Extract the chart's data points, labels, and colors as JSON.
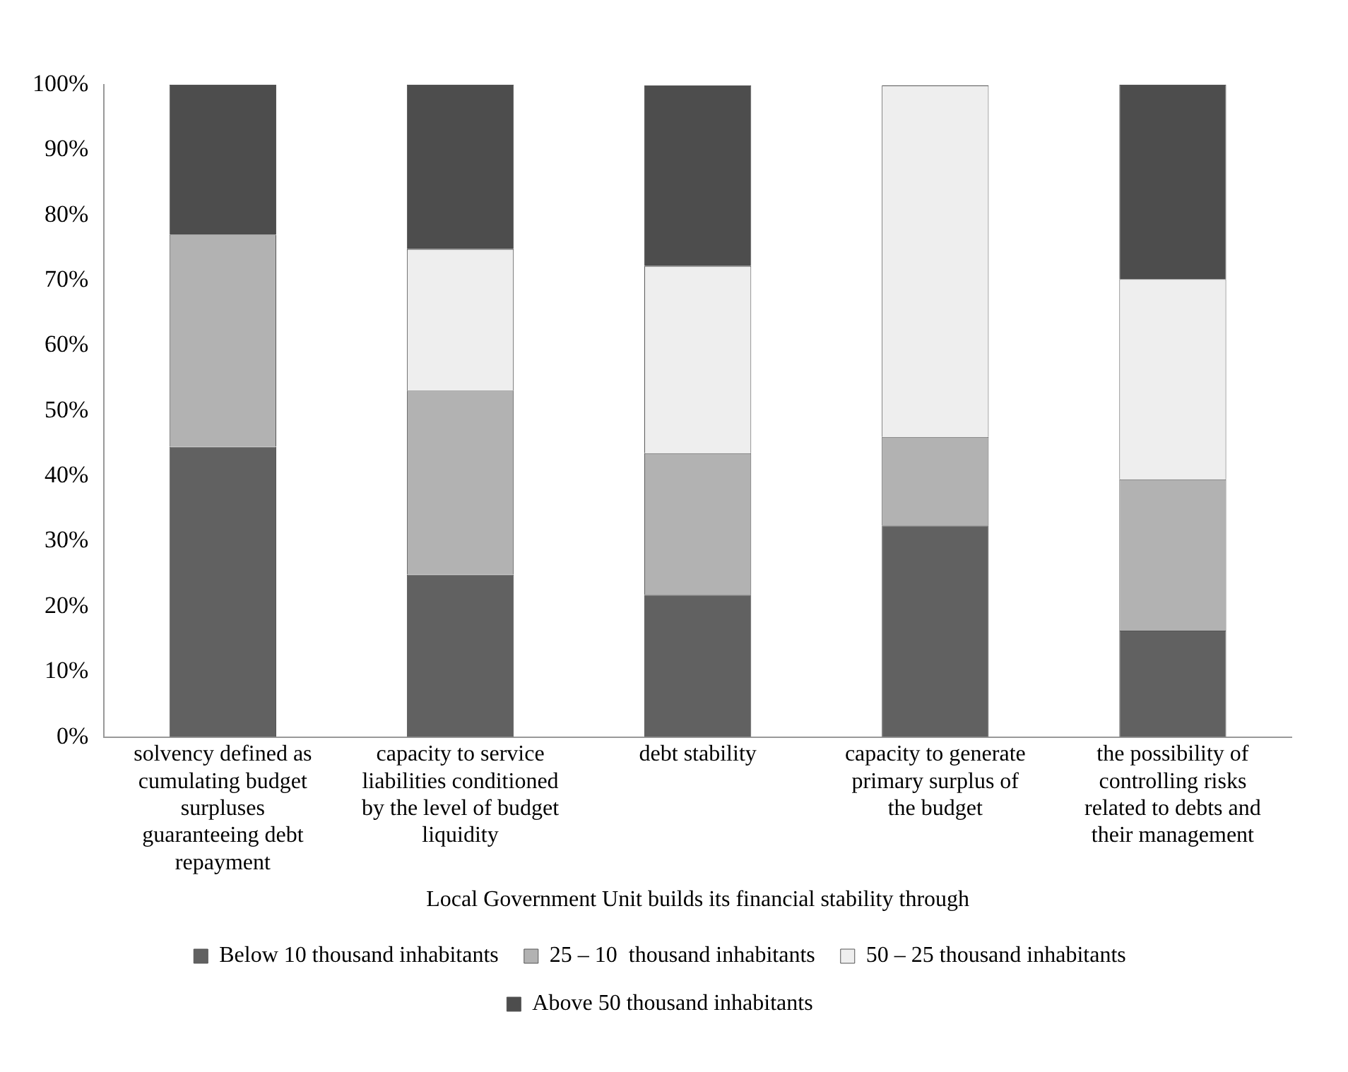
{
  "chart_data": {
    "type": "bar",
    "stacked": true,
    "xlabel": "Local Government Unit builds its financial stability through",
    "categories": [
      "solvency defined as cumulating budget surpluses guaranteeing debt repayment",
      "capacity to service liabilities conditioned by the level of budget liquidity",
      "debt stability",
      "capacity to generate primary surplus of the budget",
      "the possibility of controlling risks related to debts and their management"
    ],
    "series": [
      {
        "name": "Below 10 thousand inhabitants",
        "color": "#616161",
        "values": [
          44.5,
          24.9,
          21.8,
          32.4,
          16.3
        ]
      },
      {
        "name": "25 – 10  thousand inhabitants",
        "color": "#b2b2b2",
        "values": [
          32.5,
          28.2,
          21.7,
          13.6,
          23.2
        ]
      },
      {
        "name": "50 – 25 thousand inhabitants",
        "color": "#eeeeee",
        "values": [
          0,
          21.7,
          28.7,
          53.9,
          30.7
        ]
      },
      {
        "name": "Above 50 thousand inhabitants",
        "color": "#4d4d4d",
        "values": [
          23.0,
          25.2,
          27.7,
          0,
          29.8
        ]
      }
    ],
    "ylim": [
      0,
      100
    ],
    "yticks": [
      {
        "value": 0,
        "label": "0%"
      },
      {
        "value": 10,
        "label": "10%"
      },
      {
        "value": 20,
        "label": "20%"
      },
      {
        "value": 30,
        "label": "30%"
      },
      {
        "value": 40,
        "label": "40%"
      },
      {
        "value": 50,
        "label": "50%"
      },
      {
        "value": 60,
        "label": "60%"
      },
      {
        "value": 70,
        "label": "70%"
      },
      {
        "value": 80,
        "label": "80%"
      },
      {
        "value": 90,
        "label": "90%"
      },
      {
        "value": 100,
        "label": "100%"
      }
    ],
    "grid": false,
    "legend": "bottom"
  }
}
